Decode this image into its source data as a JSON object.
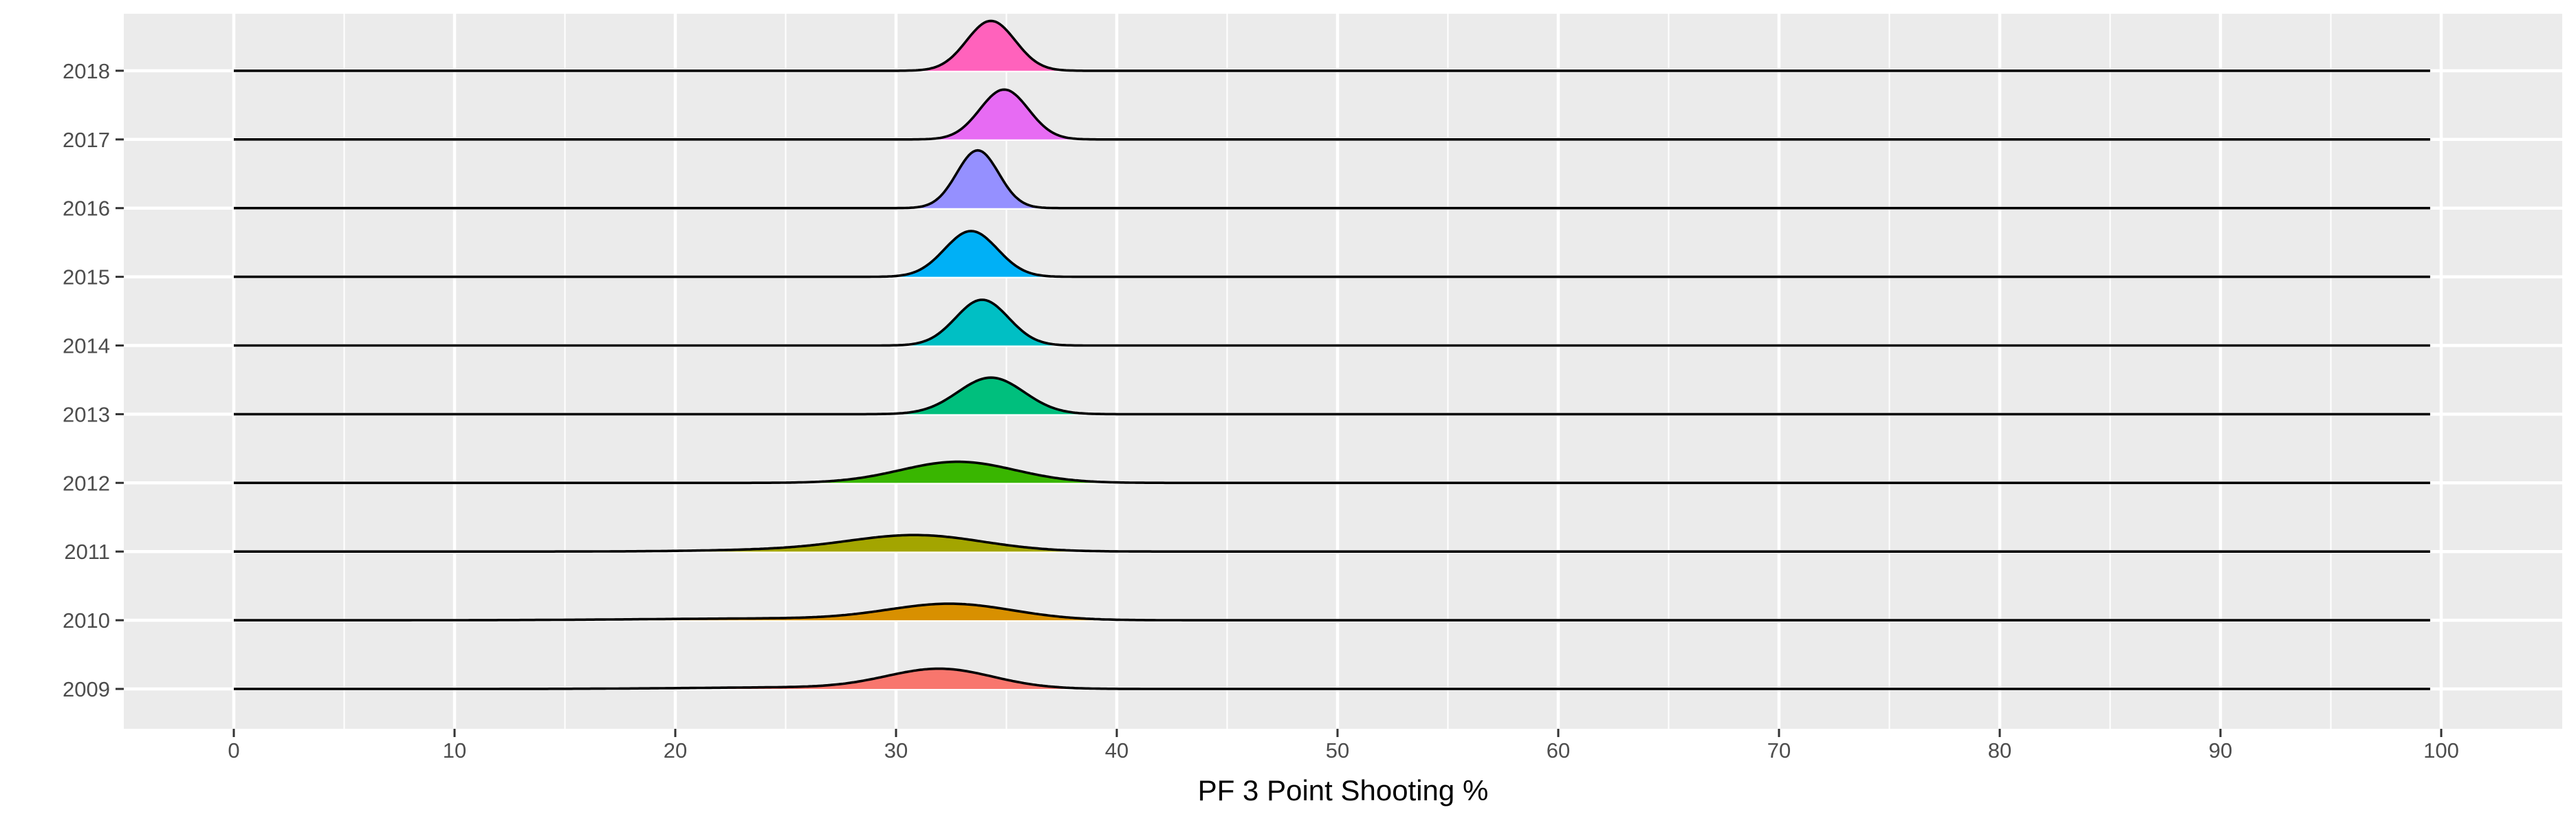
{
  "chart_data": {
    "type": "ridgeline",
    "title": "",
    "xlabel": "PF 3 Point Shooting %",
    "ylabel": "",
    "xlim": [
      -5,
      103
    ],
    "x_ticks": [
      0,
      10,
      20,
      30,
      40,
      50,
      60,
      70,
      80,
      90,
      100
    ],
    "x_range": [
      0,
      99.5
    ],
    "grid": true,
    "legend": "none",
    "series": [
      {
        "name": "2009",
        "color": "#F8766D",
        "components": [
          {
            "w": 0.85,
            "mu": 32.0,
            "sd": 2.4
          },
          {
            "w": 0.15,
            "mu": 26.0,
            "sd": 5.0
          }
        ]
      },
      {
        "name": "2010",
        "color": "#D89000",
        "components": [
          {
            "w": 0.8,
            "mu": 32.5,
            "sd": 2.8
          },
          {
            "w": 0.2,
            "mu": 25.0,
            "sd": 6.0
          }
        ]
      },
      {
        "name": "2011",
        "color": "#A3A500",
        "components": [
          {
            "w": 0.85,
            "mu": 31.0,
            "sd": 3.0
          },
          {
            "w": 0.15,
            "mu": 26.0,
            "sd": 4.0
          }
        ]
      },
      {
        "name": "2012",
        "color": "#39B600",
        "components": [
          {
            "w": 1.0,
            "mu": 32.8,
            "sd": 2.6
          }
        ]
      },
      {
        "name": "2013",
        "color": "#00BF7D",
        "components": [
          {
            "w": 1.0,
            "mu": 34.3,
            "sd": 1.5
          }
        ]
      },
      {
        "name": "2014",
        "color": "#00BFC4",
        "components": [
          {
            "w": 1.0,
            "mu": 33.9,
            "sd": 1.2
          }
        ]
      },
      {
        "name": "2015",
        "color": "#00B0F6",
        "components": [
          {
            "w": 1.0,
            "mu": 33.4,
            "sd": 1.2
          }
        ]
      },
      {
        "name": "2016",
        "color": "#9590FF",
        "components": [
          {
            "w": 1.0,
            "mu": 33.7,
            "sd": 0.95
          }
        ]
      },
      {
        "name": "2017",
        "color": "#E76BF3",
        "components": [
          {
            "w": 1.0,
            "mu": 34.9,
            "sd": 1.1
          }
        ]
      },
      {
        "name": "2018",
        "color": "#FF62BC",
        "components": [
          {
            "w": 1.0,
            "mu": 34.3,
            "sd": 1.1
          }
        ]
      }
    ]
  }
}
